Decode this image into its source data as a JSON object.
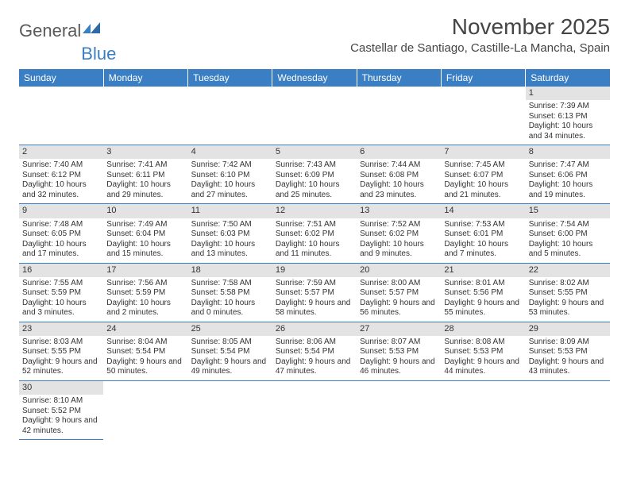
{
  "logo": {
    "text1": "General",
    "text2": "Blue"
  },
  "title": "November 2025",
  "location": "Castellar de Santiago, Castille-La Mancha, Spain",
  "columns": [
    "Sunday",
    "Monday",
    "Tuesday",
    "Wednesday",
    "Thursday",
    "Friday",
    "Saturday"
  ],
  "colors": {
    "header_bg": "#3a7fc4",
    "header_fg": "#ffffff",
    "daynum_bg": "#e3e3e3",
    "border": "#3a7fc4",
    "text": "#333333",
    "logo_gray": "#5a5a5a",
    "logo_blue": "#3a7fc4"
  },
  "fonts": {
    "title_size": 28,
    "location_size": 15,
    "dayhead_size": 12,
    "daynum_size": 11,
    "body_size": 10
  },
  "layout": {
    "first_day_col": 6,
    "rows": 6
  },
  "days": [
    {
      "n": 1,
      "sunrise": "7:39 AM",
      "sunset": "6:13 PM",
      "daylight": "10 hours and 34 minutes."
    },
    {
      "n": 2,
      "sunrise": "7:40 AM",
      "sunset": "6:12 PM",
      "daylight": "10 hours and 32 minutes."
    },
    {
      "n": 3,
      "sunrise": "7:41 AM",
      "sunset": "6:11 PM",
      "daylight": "10 hours and 29 minutes."
    },
    {
      "n": 4,
      "sunrise": "7:42 AM",
      "sunset": "6:10 PM",
      "daylight": "10 hours and 27 minutes."
    },
    {
      "n": 5,
      "sunrise": "7:43 AM",
      "sunset": "6:09 PM",
      "daylight": "10 hours and 25 minutes."
    },
    {
      "n": 6,
      "sunrise": "7:44 AM",
      "sunset": "6:08 PM",
      "daylight": "10 hours and 23 minutes."
    },
    {
      "n": 7,
      "sunrise": "7:45 AM",
      "sunset": "6:07 PM",
      "daylight": "10 hours and 21 minutes."
    },
    {
      "n": 8,
      "sunrise": "7:47 AM",
      "sunset": "6:06 PM",
      "daylight": "10 hours and 19 minutes."
    },
    {
      "n": 9,
      "sunrise": "7:48 AM",
      "sunset": "6:05 PM",
      "daylight": "10 hours and 17 minutes."
    },
    {
      "n": 10,
      "sunrise": "7:49 AM",
      "sunset": "6:04 PM",
      "daylight": "10 hours and 15 minutes."
    },
    {
      "n": 11,
      "sunrise": "7:50 AM",
      "sunset": "6:03 PM",
      "daylight": "10 hours and 13 minutes."
    },
    {
      "n": 12,
      "sunrise": "7:51 AM",
      "sunset": "6:02 PM",
      "daylight": "10 hours and 11 minutes."
    },
    {
      "n": 13,
      "sunrise": "7:52 AM",
      "sunset": "6:02 PM",
      "daylight": "10 hours and 9 minutes."
    },
    {
      "n": 14,
      "sunrise": "7:53 AM",
      "sunset": "6:01 PM",
      "daylight": "10 hours and 7 minutes."
    },
    {
      "n": 15,
      "sunrise": "7:54 AM",
      "sunset": "6:00 PM",
      "daylight": "10 hours and 5 minutes."
    },
    {
      "n": 16,
      "sunrise": "7:55 AM",
      "sunset": "5:59 PM",
      "daylight": "10 hours and 3 minutes."
    },
    {
      "n": 17,
      "sunrise": "7:56 AM",
      "sunset": "5:59 PM",
      "daylight": "10 hours and 2 minutes."
    },
    {
      "n": 18,
      "sunrise": "7:58 AM",
      "sunset": "5:58 PM",
      "daylight": "10 hours and 0 minutes."
    },
    {
      "n": 19,
      "sunrise": "7:59 AM",
      "sunset": "5:57 PM",
      "daylight": "9 hours and 58 minutes."
    },
    {
      "n": 20,
      "sunrise": "8:00 AM",
      "sunset": "5:57 PM",
      "daylight": "9 hours and 56 minutes."
    },
    {
      "n": 21,
      "sunrise": "8:01 AM",
      "sunset": "5:56 PM",
      "daylight": "9 hours and 55 minutes."
    },
    {
      "n": 22,
      "sunrise": "8:02 AM",
      "sunset": "5:55 PM",
      "daylight": "9 hours and 53 minutes."
    },
    {
      "n": 23,
      "sunrise": "8:03 AM",
      "sunset": "5:55 PM",
      "daylight": "9 hours and 52 minutes."
    },
    {
      "n": 24,
      "sunrise": "8:04 AM",
      "sunset": "5:54 PM",
      "daylight": "9 hours and 50 minutes."
    },
    {
      "n": 25,
      "sunrise": "8:05 AM",
      "sunset": "5:54 PM",
      "daylight": "9 hours and 49 minutes."
    },
    {
      "n": 26,
      "sunrise": "8:06 AM",
      "sunset": "5:54 PM",
      "daylight": "9 hours and 47 minutes."
    },
    {
      "n": 27,
      "sunrise": "8:07 AM",
      "sunset": "5:53 PM",
      "daylight": "9 hours and 46 minutes."
    },
    {
      "n": 28,
      "sunrise": "8:08 AM",
      "sunset": "5:53 PM",
      "daylight": "9 hours and 44 minutes."
    },
    {
      "n": 29,
      "sunrise": "8:09 AM",
      "sunset": "5:53 PM",
      "daylight": "9 hours and 43 minutes."
    },
    {
      "n": 30,
      "sunrise": "8:10 AM",
      "sunset": "5:52 PM",
      "daylight": "9 hours and 42 minutes."
    }
  ],
  "labels": {
    "sunrise": "Sunrise:",
    "sunset": "Sunset:",
    "daylight": "Daylight:"
  }
}
